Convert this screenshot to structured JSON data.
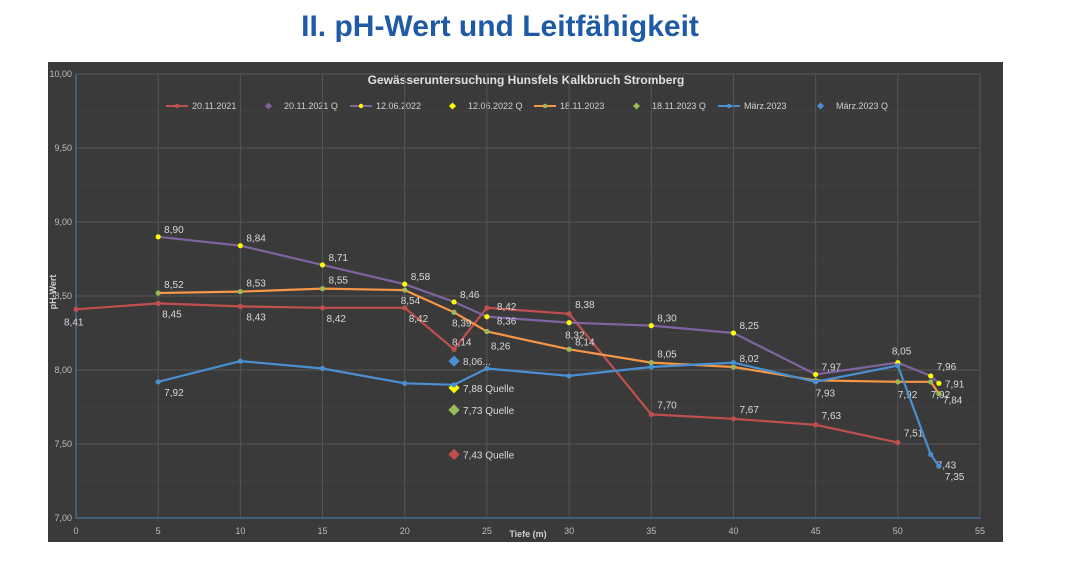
{
  "slide_title": "II. pH-Wert und Leitfähigkeit",
  "chart_data": {
    "type": "line",
    "title": "Gewässeruntersuchung Hunsfels Kalkbruch Stromberg",
    "xlabel": "Tiefe (m)",
    "ylabel": "pH-Wert",
    "xlim": [
      0,
      55
    ],
    "ylim": [
      7.0,
      10.0
    ],
    "x_ticks": [
      0,
      5,
      10,
      15,
      20,
      25,
      30,
      35,
      40,
      45,
      50,
      55
    ],
    "y_ticks": [
      "7,00",
      "7,50",
      "8,00",
      "8,50",
      "9,00",
      "9,50",
      "10,00"
    ],
    "grid": true,
    "legend_position": "top",
    "series": [
      {
        "name": "20.11.2021",
        "color": "#c0504d",
        "kind": "line",
        "points": [
          {
            "x": 0,
            "y": 8.41,
            "label": "8,41"
          },
          {
            "x": 5,
            "y": 8.45,
            "label": "8,45"
          },
          {
            "x": 10,
            "y": 8.43,
            "label": "8,43"
          },
          {
            "x": 15,
            "y": 8.42,
            "label": "8,42"
          },
          {
            "x": 20,
            "y": 8.42,
            "label": "8,42"
          },
          {
            "x": 23,
            "y": 8.14,
            "label": "8,14"
          },
          {
            "x": 25,
            "y": 8.42,
            "label": "8,42"
          },
          {
            "x": 30,
            "y": 8.38,
            "label": "8,38"
          },
          {
            "x": 35,
            "y": 7.7,
            "label": "7,70"
          },
          {
            "x": 40,
            "y": 7.67,
            "label": "7,67"
          },
          {
            "x": 45,
            "y": 7.63,
            "label": "7,63"
          },
          {
            "x": 50,
            "y": 7.51,
            "label": "7,51"
          }
        ]
      },
      {
        "name": "20.11.2021 Q",
        "color": "#8064a2",
        "kind": "marker",
        "points": []
      },
      {
        "name": "12.06.2022",
        "color": "#8064a2",
        "marker_color": "#ffff00",
        "kind": "line",
        "points": [
          {
            "x": 5,
            "y": 8.9,
            "label": "8,90"
          },
          {
            "x": 10,
            "y": 8.84,
            "label": "8,84"
          },
          {
            "x": 15,
            "y": 8.71,
            "label": "8,71"
          },
          {
            "x": 20,
            "y": 8.58,
            "label": "8,58"
          },
          {
            "x": 23,
            "y": 8.46,
            "label": "8,46"
          },
          {
            "x": 25,
            "y": 8.36,
            "label": "8,36"
          },
          {
            "x": 30,
            "y": 8.32,
            "label": "8,32"
          },
          {
            "x": 35,
            "y": 8.3,
            "label": "8,30"
          },
          {
            "x": 40,
            "y": 8.25,
            "label": "8,25"
          },
          {
            "x": 45,
            "y": 7.97,
            "label": "7,97"
          },
          {
            "x": 50,
            "y": 8.05,
            "label": "8,05"
          },
          {
            "x": 52,
            "y": 7.96,
            "label": "7,96"
          },
          {
            "x": 52.5,
            "y": 7.91,
            "label": "7,91"
          }
        ]
      },
      {
        "name": "12.06.2022 Q",
        "color": "#ffff00",
        "kind": "marker",
        "points": [
          {
            "x": 23,
            "y": 7.88,
            "label": "7,88 Quelle"
          }
        ]
      },
      {
        "name": "18.11.2023",
        "color": "#f79646",
        "marker_color": "#9bbb59",
        "kind": "line",
        "points": [
          {
            "x": 5,
            "y": 8.52,
            "label": "8,52"
          },
          {
            "x": 10,
            "y": 8.53,
            "label": "8,53"
          },
          {
            "x": 15,
            "y": 8.55,
            "label": "8,55"
          },
          {
            "x": 20,
            "y": 8.54,
            "label": "8,54"
          },
          {
            "x": 23,
            "y": 8.39,
            "label": "8,39"
          },
          {
            "x": 25,
            "y": 8.26,
            "label": "8,26"
          },
          {
            "x": 30,
            "y": 8.14,
            "label": "8,14"
          },
          {
            "x": 35,
            "y": 8.05,
            "label": "8,05"
          },
          {
            "x": 40,
            "y": 8.02,
            "label": "8,02"
          },
          {
            "x": 45,
            "y": 7.93,
            "label": "7,93"
          },
          {
            "x": 50,
            "y": 7.92,
            "label": "7,92"
          },
          {
            "x": 52,
            "y": 7.92,
            "label": "7,92"
          },
          {
            "x": 52.5,
            "y": 7.84,
            "label": "7,84"
          }
        ]
      },
      {
        "name": "18.11.2023 Q",
        "color": "#9bbb59",
        "kind": "marker",
        "points": [
          {
            "x": 23,
            "y": 7.73,
            "label": "7,73 Quelle"
          }
        ]
      },
      {
        "name": "März.2023",
        "color": "#4a8fd0",
        "marker_color": "#4a8fd0",
        "kind": "line",
        "points": [
          {
            "x": 5,
            "y": 7.92,
            "label": "7,92"
          },
          {
            "x": 10,
            "y": 8.06,
            "label": ""
          },
          {
            "x": 15,
            "y": 8.01,
            "label": ""
          },
          {
            "x": 20,
            "y": 7.91,
            "label": ""
          },
          {
            "x": 23,
            "y": 7.9,
            "label": ""
          },
          {
            "x": 25,
            "y": 8.01,
            "label": ""
          },
          {
            "x": 30,
            "y": 7.96,
            "label": ""
          },
          {
            "x": 35,
            "y": 8.02,
            "label": ""
          },
          {
            "x": 40,
            "y": 8.05,
            "label": ""
          },
          {
            "x": 45,
            "y": 7.92,
            "label": ""
          },
          {
            "x": 50,
            "y": 8.03,
            "label": ""
          },
          {
            "x": 52,
            "y": 7.43,
            "label": "7,43"
          },
          {
            "x": 52.5,
            "y": 7.35,
            "label": "7,35"
          }
        ]
      },
      {
        "name": "März.2023 Q",
        "color": "#4a8fd0",
        "kind": "marker",
        "points": [
          {
            "x": 23,
            "y": 8.06,
            "label": "8,06..."
          }
        ]
      },
      {
        "name": "20.11.2021 Quelle",
        "color": "#c0504d",
        "kind": "marker",
        "legend": false,
        "points": [
          {
            "x": 23,
            "y": 7.43,
            "label": "7,43 Quelle"
          }
        ]
      }
    ]
  }
}
